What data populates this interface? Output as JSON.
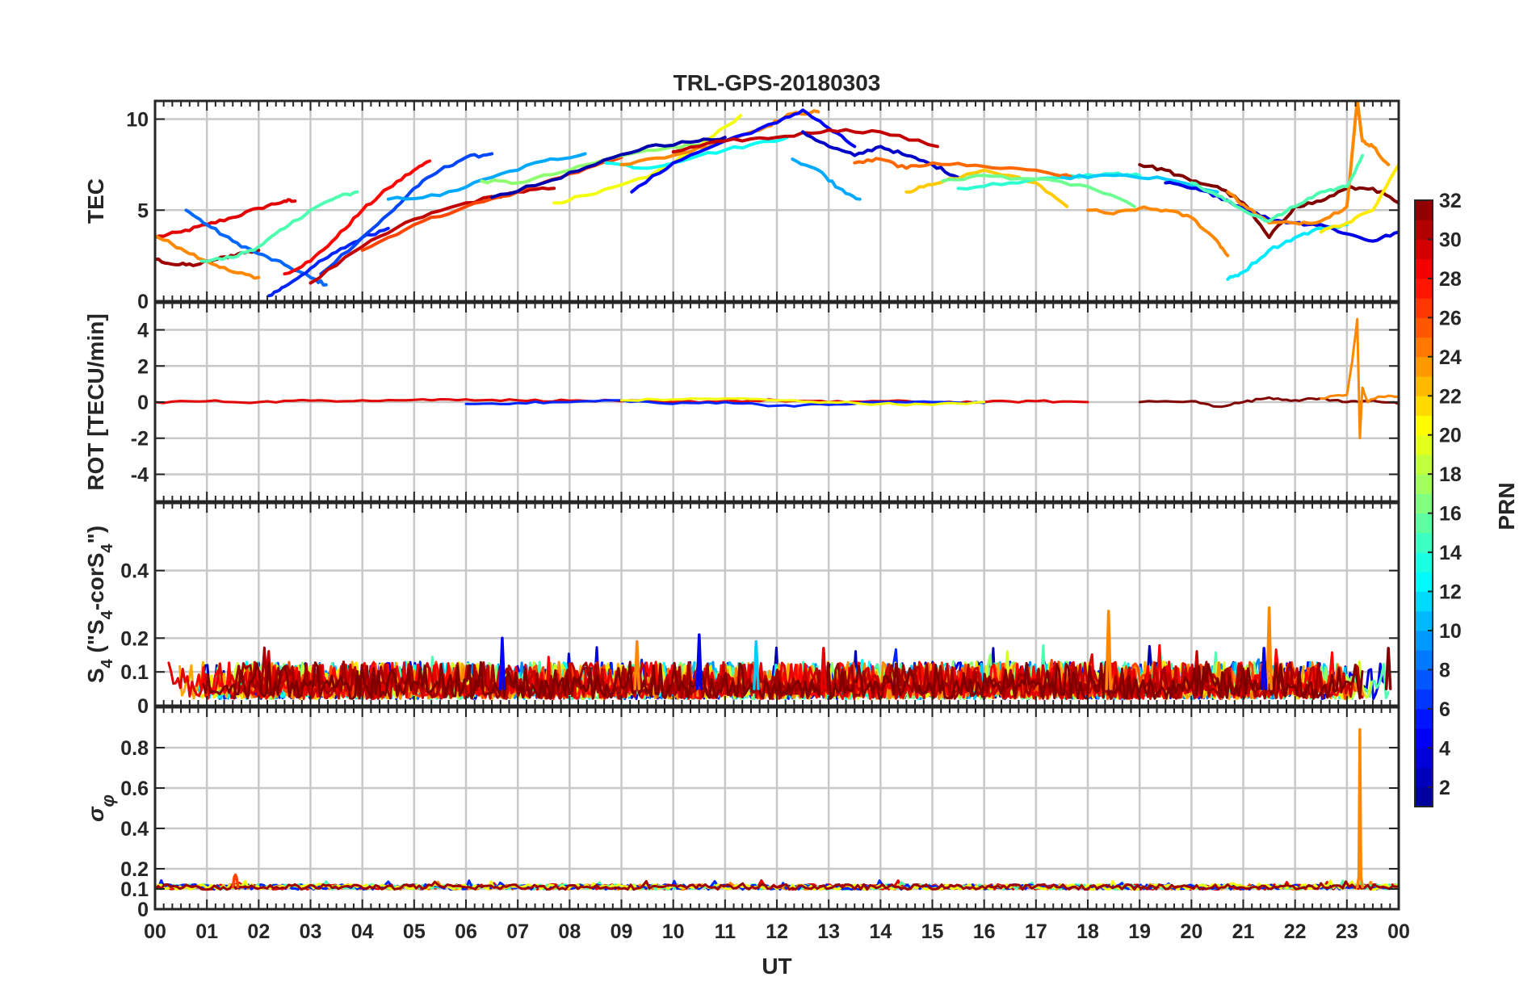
{
  "figure": {
    "title": "TRL-GPS-20180303",
    "x_tick_labels": [
      "00",
      "01",
      "02",
      "03",
      "04",
      "05",
      "06",
      "07",
      "08",
      "09",
      "10",
      "11",
      "12",
      "13",
      "14",
      "15",
      "16",
      "17",
      "18",
      "19",
      "20",
      "21",
      "22",
      "23",
      "00"
    ],
    "x_label": "UT"
  },
  "colorbar": {
    "label": "PRN",
    "range": [
      1,
      32
    ],
    "tick_values": [
      2,
      4,
      6,
      8,
      10,
      12,
      14,
      16,
      18,
      20,
      22,
      24,
      26,
      28,
      30,
      32
    ],
    "colormap": "jet",
    "colormap_stops": [
      "#00008f",
      "#0000ff",
      "#0080ff",
      "#00ffff",
      "#80ff80",
      "#ffff00",
      "#ff8000",
      "#ff0000",
      "#800000"
    ]
  },
  "chart_data": [
    {
      "type": "line",
      "panel": "TEC",
      "ylabel": "TEC",
      "ylim": [
        0,
        11
      ],
      "y_ticks": [
        0,
        5,
        10
      ],
      "x_unit": "UT hour",
      "xlim": [
        0,
        24
      ],
      "grid": true,
      "series": [
        {
          "prn": 29,
          "x": [
            0.0,
            0.5,
            1.0,
            1.5,
            2.0,
            2.5,
            2.7
          ],
          "y": [
            3.5,
            3.8,
            4.2,
            4.6,
            5.1,
            5.5,
            5.5
          ]
        },
        {
          "prn": 31,
          "x": [
            0.0,
            0.4,
            0.8,
            1.2,
            1.6,
            2.0
          ],
          "y": [
            2.3,
            2.0,
            2.0,
            2.3,
            2.6,
            2.8
          ]
        },
        {
          "prn": 24,
          "x": [
            0.0,
            0.5,
            1.0,
            1.5,
            2.0
          ],
          "y": [
            3.6,
            2.9,
            2.2,
            1.6,
            1.3
          ]
        },
        {
          "prn": 8,
          "x": [
            0.6,
            1.0,
            1.5,
            2.0,
            2.5,
            3.0,
            3.3
          ],
          "y": [
            5.0,
            4.2,
            3.3,
            2.6,
            2.0,
            1.3,
            0.9
          ]
        },
        {
          "prn": 15,
          "x": [
            0.9,
            1.5,
            2.0,
            2.5,
            3.0,
            3.5,
            3.9
          ],
          "y": [
            2.2,
            2.4,
            3.0,
            4.0,
            5.0,
            5.7,
            6.0
          ]
        },
        {
          "prn": 6,
          "x": [
            2.2,
            2.5,
            3.0,
            3.5,
            4.0,
            4.5
          ],
          "y": [
            0.3,
            0.8,
            1.8,
            2.7,
            3.5,
            4.0
          ]
        },
        {
          "prn": 28,
          "x": [
            2.5,
            3.0,
            3.5,
            4.0,
            4.5,
            5.0,
            5.3
          ],
          "y": [
            1.5,
            2.2,
            3.5,
            5.0,
            6.2,
            7.2,
            7.7
          ]
        },
        {
          "prn": 7,
          "x": [
            3.2,
            4.0,
            4.6,
            5.0,
            5.5,
            6.0,
            6.5
          ],
          "y": [
            1.5,
            3.5,
            5.0,
            6.2,
            7.2,
            7.9,
            8.1
          ]
        },
        {
          "prn": 30,
          "x": [
            3.0,
            4.0,
            5.0,
            6.0,
            7.0,
            7.7
          ],
          "y": [
            1.0,
            3.0,
            4.5,
            5.4,
            6.0,
            6.2
          ]
        },
        {
          "prn": 10,
          "x": [
            4.5,
            5.5,
            6.5,
            7.5,
            8.3
          ],
          "y": [
            5.6,
            5.8,
            6.8,
            7.7,
            8.1
          ]
        },
        {
          "prn": 26,
          "x": [
            4.0,
            5.0,
            6.0,
            7.0,
            8.0,
            9.0
          ],
          "y": [
            2.8,
            4.2,
            5.2,
            6.0,
            7.0,
            7.9
          ]
        },
        {
          "prn": 17,
          "x": [
            6.3,
            7.0,
            8.0,
            9.0,
            10.0,
            10.5
          ],
          "y": [
            6.6,
            6.5,
            7.2,
            8.0,
            8.5,
            8.6
          ]
        },
        {
          "prn": 20,
          "x": [
            7.7,
            8.5,
            9.5,
            10.5,
            11.3
          ],
          "y": [
            5.4,
            5.9,
            6.8,
            8.5,
            10.2
          ]
        },
        {
          "prn": 2,
          "x": [
            6.5,
            7.5,
            8.5,
            9.5,
            10.5,
            11.0
          ],
          "y": [
            5.7,
            6.5,
            7.5,
            8.5,
            8.8,
            9.0
          ]
        },
        {
          "prn": 13,
          "x": [
            8.7,
            9.5,
            10.5,
            11.5,
            12.2
          ],
          "y": [
            7.6,
            7.3,
            8.0,
            8.6,
            9.0
          ]
        },
        {
          "prn": 24,
          "x": [
            9.0,
            10.0,
            11.0,
            11.8,
            12.3,
            12.8
          ],
          "y": [
            7.5,
            8.0,
            8.8,
            9.6,
            10.3,
            10.4
          ]
        },
        {
          "prn": 5,
          "x": [
            9.2,
            10.0,
            11.0,
            12.0,
            12.5,
            13.0,
            13.5
          ],
          "y": [
            6.0,
            7.6,
            8.8,
            9.8,
            10.5,
            9.5,
            8.5
          ]
        },
        {
          "prn": 30,
          "x": [
            10.0,
            11.0,
            12.0,
            13.0,
            14.0,
            15.1
          ],
          "y": [
            8.2,
            8.8,
            9.0,
            9.4,
            9.3,
            8.5
          ]
        },
        {
          "prn": 3,
          "x": [
            12.5,
            13.0,
            13.5,
            14.0,
            14.5,
            15.0,
            15.5
          ],
          "y": [
            9.3,
            8.5,
            8.0,
            8.5,
            8.0,
            7.5,
            6.8
          ]
        },
        {
          "prn": 10,
          "x": [
            12.3,
            12.8,
            13.2,
            13.6
          ],
          "y": [
            7.8,
            7.2,
            6.2,
            5.6
          ]
        },
        {
          "prn": 22,
          "x": [
            14.5,
            15.0,
            16.0,
            17.0,
            17.6
          ],
          "y": [
            6.0,
            6.4,
            7.2,
            6.5,
            5.2
          ]
        },
        {
          "prn": 14,
          "x": [
            15.5,
            16.5,
            17.5,
            18.5,
            19.0
          ],
          "y": [
            6.2,
            6.5,
            6.8,
            7.0,
            6.9
          ]
        },
        {
          "prn": 25,
          "x": [
            13.5,
            14.0,
            14.5,
            15.0,
            16.0,
            17.0,
            17.7
          ],
          "y": [
            7.6,
            7.8,
            7.3,
            7.6,
            7.4,
            7.2,
            6.8
          ]
        },
        {
          "prn": 16,
          "x": [
            15.2,
            16.0,
            17.0,
            18.0,
            18.9
          ],
          "y": [
            6.6,
            6.9,
            6.7,
            6.3,
            5.2
          ]
        },
        {
          "prn": 11,
          "x": [
            17.5,
            18.5,
            19.5,
            20.5
          ],
          "y": [
            6.8,
            6.9,
            6.7,
            6.0
          ]
        },
        {
          "prn": 24,
          "x": [
            18.0,
            18.5,
            19.0,
            19.5,
            20.0,
            20.5,
            20.7
          ],
          "y": [
            5.0,
            4.8,
            5.1,
            5.0,
            4.6,
            3.3,
            2.5
          ]
        },
        {
          "prn": 32,
          "x": [
            19.0,
            19.5,
            20.0,
            20.5,
            21.0,
            21.5,
            22.0,
            22.5,
            23.0,
            23.5,
            24.0
          ],
          "y": [
            7.5,
            7.2,
            6.6,
            6.3,
            5.4,
            3.5,
            5.2,
            5.5,
            6.2,
            6.2,
            5.4
          ]
        },
        {
          "prn": 4,
          "x": [
            19.5,
            20.0,
            20.5,
            21.0,
            21.5,
            22.0,
            22.5,
            23.0,
            23.5,
            24.0
          ],
          "y": [
            6.5,
            6.2,
            5.8,
            5.1,
            4.5,
            4.3,
            4.2,
            3.7,
            3.3,
            3.8
          ]
        },
        {
          "prn": 12,
          "x": [
            20.7,
            21.0,
            21.5,
            22.0,
            22.5,
            23.0
          ],
          "y": [
            1.2,
            1.6,
            2.8,
            3.5,
            4.0,
            4.2
          ]
        },
        {
          "prn": 24,
          "x": [
            20.7,
            21.0,
            21.5,
            22.0,
            22.5,
            23.0,
            23.2,
            23.3,
            23.5,
            23.8
          ],
          "y": [
            6.0,
            5.3,
            4.3,
            4.3,
            4.4,
            5.2,
            11.0,
            8.8,
            8.5,
            7.5
          ]
        },
        {
          "prn": 15,
          "x": [
            20.0,
            20.5,
            21.0,
            21.5,
            22.0,
            22.5,
            23.0,
            23.3
          ],
          "y": [
            6.5,
            5.8,
            5.0,
            4.4,
            5.2,
            6.0,
            6.3,
            8.0
          ]
        },
        {
          "prn": 21,
          "x": [
            22.5,
            23.0,
            23.5,
            24.0
          ],
          "y": [
            3.8,
            4.3,
            5.0,
            7.5
          ]
        }
      ]
    },
    {
      "type": "line",
      "panel": "ROT",
      "ylabel": "ROT [TECU/min]",
      "ylim": [
        -5.5,
        5.5
      ],
      "y_ticks": [
        -4,
        -2,
        0,
        2,
        4
      ],
      "x_unit": "UT hour",
      "xlim": [
        0,
        24
      ],
      "grid": true,
      "series": [
        {
          "prn": 29,
          "x": [
            0,
            1,
            2,
            3,
            4,
            5,
            6,
            7,
            8,
            9,
            10,
            11,
            12,
            13,
            14,
            15,
            16,
            17,
            18
          ],
          "y": [
            0.0,
            0.05,
            0.0,
            0.08,
            0.1,
            0.12,
            0.15,
            0.1,
            0.08,
            0.05,
            0.0,
            0.05,
            0.1,
            0.0,
            0.05,
            0.0,
            0.0,
            0.05,
            0.0
          ]
        },
        {
          "prn": 6,
          "x": [
            6,
            7,
            8,
            9,
            10,
            11,
            12,
            13,
            14,
            15,
            16
          ],
          "y": [
            -0.1,
            -0.05,
            0.0,
            0.1,
            -0.1,
            0.0,
            -0.2,
            -0.15,
            0.0,
            0.0,
            -0.05
          ]
        },
        {
          "prn": 20,
          "x": [
            9,
            10,
            11,
            12,
            13,
            14,
            15,
            16
          ],
          "y": [
            0.1,
            0.15,
            0.2,
            0.1,
            0.0,
            -0.1,
            -0.15,
            0.0
          ]
        },
        {
          "prn": 32,
          "x": [
            19,
            20,
            20.5,
            21,
            21.5,
            22,
            22.5,
            23,
            23.5,
            24
          ],
          "y": [
            0.0,
            0.05,
            -0.25,
            0.0,
            0.25,
            0.1,
            0.2,
            0.0,
            0.1,
            -0.1
          ]
        },
        {
          "prn": 24,
          "x": [
            22.5,
            23.0,
            23.1,
            23.2,
            23.25,
            23.3,
            23.4,
            23.6,
            24.0
          ],
          "y": [
            0.2,
            0.4,
            2.2,
            4.6,
            -2.0,
            0.8,
            0.0,
            0.3,
            0.3
          ]
        }
      ]
    },
    {
      "type": "line",
      "panel": "S4",
      "ylabel": "S4 (\"S4-corS4\")",
      "ylim": [
        0,
        0.6
      ],
      "y_ticks": [
        0,
        0.1,
        0.2,
        0.4
      ],
      "x_unit": "UT hour",
      "xlim": [
        0,
        24
      ],
      "grid": true,
      "background_range": [
        0.02,
        0.13
      ],
      "spikes": [
        {
          "prn": 5,
          "x": 6.7,
          "y": 0.2
        },
        {
          "prn": 4,
          "x": 10.5,
          "y": 0.21
        },
        {
          "prn": 24,
          "x": 9.3,
          "y": 0.19
        },
        {
          "prn": 24,
          "x": 18.4,
          "y": 0.28
        },
        {
          "prn": 24,
          "x": 21.5,
          "y": 0.29
        },
        {
          "prn": 4,
          "x": 21.4,
          "y": 0.17
        },
        {
          "prn": 11,
          "x": 11.6,
          "y": 0.19
        },
        {
          "prn": 29,
          "x": 12.9,
          "y": 0.17
        },
        {
          "prn": 32,
          "x": 23.8,
          "y": 0.17
        }
      ]
    },
    {
      "type": "line",
      "panel": "sigma_phi",
      "ylabel": "σφ",
      "ylim": [
        0,
        1.0
      ],
      "y_ticks": [
        0,
        0.1,
        0.2,
        0.4,
        0.6,
        0.8
      ],
      "x_unit": "UT hour",
      "xlim": [
        0,
        24
      ],
      "grid": true,
      "baseline": 0.11,
      "spikes": [
        {
          "prn": 24,
          "x": 23.25,
          "y": 0.89
        },
        {
          "prn": 26,
          "x": 1.55,
          "y": 0.17
        }
      ]
    }
  ]
}
